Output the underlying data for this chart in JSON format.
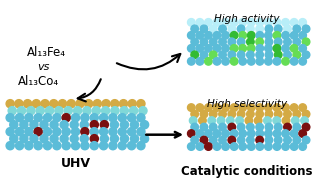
{
  "title_uhv": "UHV",
  "title_cat": "Catalytic conditions",
  "label_selectivity": "High selectivity",
  "label_activity": "High activity",
  "label_top": "Al₁₃Co₄",
  "label_vs": "vs",
  "label_bottom": "Al₁₃Fe₄",
  "bg_color": "#ffffff",
  "color_blue_light": "#5bbcd8",
  "color_blue_med": "#4aa8c4",
  "color_cyan_light": "#80d8d8",
  "color_gold": "#d4aa44",
  "color_dark_red": "#7a1010",
  "color_green_light": "#66dd55",
  "color_green_med": "#33bb33",
  "color_white_blue": "#b8eef8",
  "color_blue_dark": "#3a8ab0"
}
